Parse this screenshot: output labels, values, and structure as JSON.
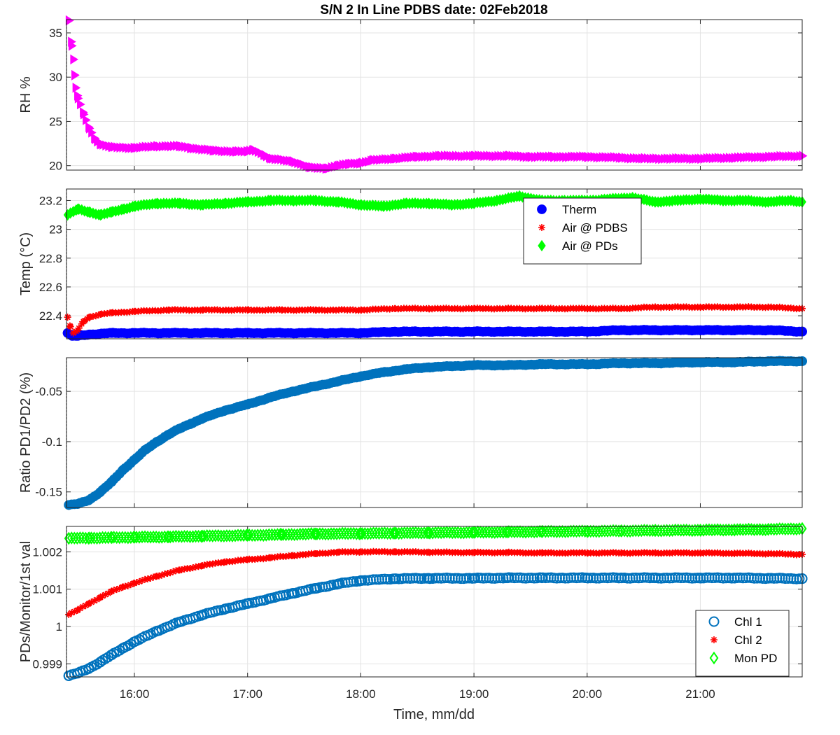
{
  "figure": {
    "title": "S/N 2 In Line PDBS date: 02Feb2018",
    "xlabel": "Time, mm/dd",
    "x_tick_labels": [
      "16:00",
      "17:00",
      "18:00",
      "19:00",
      "20:00",
      "21:00"
    ]
  },
  "chart_data": [
    {
      "type": "scatter",
      "ylabel": "RH %",
      "xlim": [
        15.4,
        21.9
      ],
      "ylim": [
        19.5,
        36.5
      ],
      "y_ticks": [
        20,
        25,
        30,
        35
      ],
      "grid": true,
      "series": [
        {
          "color": "#ff00ff",
          "marker": "triangle-right",
          "points": [
            [
              15.42,
              36.4
            ],
            [
              15.44,
              34
            ],
            [
              15.46,
              32
            ],
            [
              15.47,
              30.2
            ],
            [
              15.48,
              28.8
            ],
            [
              15.5,
              27.6
            ],
            [
              15.55,
              25.8
            ],
            [
              15.6,
              24.2
            ],
            [
              15.65,
              23
            ],
            [
              15.7,
              22.4
            ],
            [
              15.8,
              22.1
            ],
            [
              16,
              22
            ],
            [
              16.2,
              22.2
            ],
            [
              16.4,
              22.2
            ],
            [
              16.5,
              22
            ],
            [
              16.7,
              21.7
            ],
            [
              16.9,
              21.6
            ],
            [
              17,
              21.6
            ],
            [
              17.05,
              21.8
            ],
            [
              17.15,
              21.2
            ],
            [
              17.2,
              20.8
            ],
            [
              17.4,
              20.5
            ],
            [
              17.55,
              19.8
            ],
            [
              17.7,
              19.7
            ],
            [
              17.8,
              20
            ],
            [
              17.9,
              20.2
            ],
            [
              18,
              20.3
            ],
            [
              18.1,
              20.6
            ],
            [
              18.3,
              20.8
            ],
            [
              18.5,
              21
            ],
            [
              18.7,
              21.1
            ],
            [
              19,
              21.1
            ],
            [
              19.3,
              21.1
            ],
            [
              19.5,
              21
            ],
            [
              19.7,
              21
            ],
            [
              20,
              21
            ],
            [
              20.3,
              20.9
            ],
            [
              20.5,
              20.8
            ],
            [
              20.8,
              20.8
            ],
            [
              21,
              20.8
            ],
            [
              21.3,
              20.9
            ],
            [
              21.6,
              21
            ],
            [
              21.9,
              21.1
            ]
          ]
        }
      ]
    },
    {
      "type": "scatter",
      "ylabel": "Temp (°C)",
      "xlim": [
        15.4,
        21.9
      ],
      "ylim": [
        22.24,
        23.28
      ],
      "y_ticks": [
        22.4,
        22.6,
        22.8,
        23,
        23.2
      ],
      "y_tick_labels": [
        "22.4",
        "22.6",
        "22.8",
        "23",
        "23.2"
      ],
      "grid": true,
      "legend": {
        "placement": "top-right"
      },
      "series": [
        {
          "name": "Therm",
          "color": "#0000ff",
          "marker": "circle-filled",
          "points": [
            [
              15.41,
              22.28
            ],
            [
              15.45,
              22.26
            ],
            [
              15.5,
              22.26
            ],
            [
              15.6,
              22.27
            ],
            [
              15.8,
              22.28
            ],
            [
              16,
              22.28
            ],
            [
              16.3,
              22.28
            ],
            [
              16.6,
              22.28
            ],
            [
              17,
              22.28
            ],
            [
              17.3,
              22.28
            ],
            [
              17.6,
              22.28
            ],
            [
              18,
              22.28
            ],
            [
              18.3,
              22.29
            ],
            [
              18.6,
              22.29
            ],
            [
              19,
              22.29
            ],
            [
              19.3,
              22.29
            ],
            [
              19.6,
              22.29
            ],
            [
              20,
              22.29
            ],
            [
              20.3,
              22.3
            ],
            [
              20.6,
              22.3
            ],
            [
              21,
              22.3
            ],
            [
              21.3,
              22.3
            ],
            [
              21.6,
              22.3
            ],
            [
              21.9,
              22.29
            ]
          ]
        },
        {
          "name": "Air @ PDBS",
          "color": "#ff0000",
          "marker": "asterisk",
          "points": [
            [
              15.41,
              22.39
            ],
            [
              15.43,
              22.33
            ],
            [
              15.46,
              22.28
            ],
            [
              15.5,
              22.3
            ],
            [
              15.55,
              22.36
            ],
            [
              15.6,
              22.39
            ],
            [
              15.7,
              22.41
            ],
            [
              15.8,
              22.42
            ],
            [
              16,
              22.43
            ],
            [
              16.3,
              22.44
            ],
            [
              16.6,
              22.44
            ],
            [
              17,
              22.44
            ],
            [
              17.3,
              22.44
            ],
            [
              17.6,
              22.44
            ],
            [
              18,
              22.44
            ],
            [
              18.3,
              22.45
            ],
            [
              18.6,
              22.45
            ],
            [
              19,
              22.45
            ],
            [
              19.3,
              22.45
            ],
            [
              19.6,
              22.45
            ],
            [
              20,
              22.45
            ],
            [
              20.3,
              22.45
            ],
            [
              20.6,
              22.46
            ],
            [
              21,
              22.46
            ],
            [
              21.3,
              22.46
            ],
            [
              21.6,
              22.46
            ],
            [
              21.9,
              22.45
            ]
          ]
        },
        {
          "name": "Air @ PDs",
          "color": "#00ff00",
          "marker": "diamond-filled",
          "points": [
            [
              15.41,
              23.1
            ],
            [
              15.5,
              23.14
            ],
            [
              15.6,
              23.12
            ],
            [
              15.7,
              23.1
            ],
            [
              15.8,
              23.12
            ],
            [
              15.9,
              23.14
            ],
            [
              16,
              23.16
            ],
            [
              16.2,
              23.18
            ],
            [
              16.4,
              23.18
            ],
            [
              16.6,
              23.17
            ],
            [
              16.8,
              23.18
            ],
            [
              17,
              23.19
            ],
            [
              17.2,
              23.2
            ],
            [
              17.4,
              23.2
            ],
            [
              17.6,
              23.2
            ],
            [
              17.8,
              23.19
            ],
            [
              18,
              23.17
            ],
            [
              18.2,
              23.16
            ],
            [
              18.4,
              23.18
            ],
            [
              18.6,
              23.18
            ],
            [
              18.8,
              23.17
            ],
            [
              19,
              23.18
            ],
            [
              19.2,
              23.2
            ],
            [
              19.4,
              23.23
            ],
            [
              19.6,
              23.2
            ],
            [
              19.8,
              23.2
            ],
            [
              20,
              23.2
            ],
            [
              20.2,
              23.21
            ],
            [
              20.4,
              23.22
            ],
            [
              20.6,
              23.19
            ],
            [
              20.8,
              23.2
            ],
            [
              21,
              23.21
            ],
            [
              21.2,
              23.2
            ],
            [
              21.4,
              23.2
            ],
            [
              21.6,
              23.19
            ],
            [
              21.8,
              23.2
            ],
            [
              21.9,
              23.19
            ]
          ]
        }
      ]
    },
    {
      "type": "scatter",
      "ylabel": "Ratio PD1/PD2 (%)",
      "xlim": [
        15.4,
        21.9
      ],
      "ylim": [
        -0.1655,
        -0.0165
      ],
      "y_ticks": [
        -0.15,
        -0.1,
        -0.05
      ],
      "y_tick_labels": [
        "-0.15",
        "-0.1",
        "-0.05"
      ],
      "grid": true,
      "series": [
        {
          "color": "#0072bd",
          "marker": "circle-filled",
          "points": [
            [
              15.42,
              -0.163
            ],
            [
              15.5,
              -0.162
            ],
            [
              15.6,
              -0.158
            ],
            [
              15.7,
              -0.15
            ],
            [
              15.8,
              -0.14
            ],
            [
              15.9,
              -0.128
            ],
            [
              16,
              -0.118
            ],
            [
              16.1,
              -0.108
            ],
            [
              16.2,
              -0.1
            ],
            [
              16.3,
              -0.093
            ],
            [
              16.4,
              -0.087
            ],
            [
              16.5,
              -0.082
            ],
            [
              16.6,
              -0.077
            ],
            [
              16.8,
              -0.069
            ],
            [
              17,
              -0.063
            ],
            [
              17.2,
              -0.056
            ],
            [
              17.4,
              -0.05
            ],
            [
              17.6,
              -0.045
            ],
            [
              17.8,
              -0.04
            ],
            [
              18,
              -0.035
            ],
            [
              18.2,
              -0.031
            ],
            [
              18.4,
              -0.028
            ],
            [
              18.6,
              -0.026
            ],
            [
              18.8,
              -0.025
            ],
            [
              19,
              -0.024
            ],
            [
              19.3,
              -0.024
            ],
            [
              19.6,
              -0.023
            ],
            [
              20,
              -0.023
            ],
            [
              20.3,
              -0.022
            ],
            [
              20.6,
              -0.022
            ],
            [
              21,
              -0.021
            ],
            [
              21.3,
              -0.021
            ],
            [
              21.6,
              -0.02
            ],
            [
              21.9,
              -0.02
            ]
          ]
        }
      ]
    },
    {
      "type": "scatter",
      "ylabel": "PDs/Monitor/1st val",
      "xlim": [
        15.4,
        21.9
      ],
      "ylim": [
        0.99865,
        1.00268
      ],
      "y_ticks": [
        0.999,
        1,
        1.001,
        1.002
      ],
      "y_tick_labels": [
        "0.999",
        "1",
        "1.001",
        "1.002"
      ],
      "grid": true,
      "legend": {
        "placement": "bottom-right"
      },
      "series": [
        {
          "name": "Chl 1",
          "color": "#0072bd",
          "marker": "circle-open",
          "points": [
            [
              15.42,
              0.99868
            ],
            [
              15.5,
              0.99875
            ],
            [
              15.6,
              0.99888
            ],
            [
              15.7,
              0.99905
            ],
            [
              15.8,
              0.99924
            ],
            [
              15.9,
              0.99942
            ],
            [
              16,
              0.99959
            ],
            [
              16.2,
              0.99988
            ],
            [
              16.4,
              1.00012
            ],
            [
              16.6,
              1.00031
            ],
            [
              16.8,
              1.00047
            ],
            [
              17,
              1.00061
            ],
            [
              17.2,
              1.00075
            ],
            [
              17.4,
              1.00089
            ],
            [
              17.6,
              1.00102
            ],
            [
              17.8,
              1.00114
            ],
            [
              18,
              1.00123
            ],
            [
              18.3,
              1.00128
            ],
            [
              18.6,
              1.00129
            ],
            [
              19,
              1.00129
            ],
            [
              19.3,
              1.0013
            ],
            [
              19.6,
              1.0013
            ],
            [
              20,
              1.0013
            ],
            [
              20.3,
              1.0013
            ],
            [
              20.6,
              1.0013
            ],
            [
              21,
              1.0013
            ],
            [
              21.3,
              1.0013
            ],
            [
              21.6,
              1.00129
            ],
            [
              21.9,
              1.00128
            ]
          ]
        },
        {
          "name": "Chl 2",
          "color": "#ff0000",
          "marker": "asterisk",
          "points": [
            [
              15.42,
              1.00032
            ],
            [
              15.5,
              1.00044
            ],
            [
              15.6,
              1.00062
            ],
            [
              15.7,
              1.00078
            ],
            [
              15.8,
              1.00094
            ],
            [
              15.9,
              1.00106
            ],
            [
              16,
              1.00116
            ],
            [
              16.2,
              1.00135
            ],
            [
              16.4,
              1.00151
            ],
            [
              16.6,
              1.00163
            ],
            [
              16.8,
              1.00173
            ],
            [
              17,
              1.00179
            ],
            [
              17.2,
              1.00184
            ],
            [
              17.4,
              1.0019
            ],
            [
              17.6,
              1.00195
            ],
            [
              17.8,
              1.00199
            ],
            [
              18,
              1.002
            ],
            [
              18.3,
              1.002
            ],
            [
              18.6,
              1.00199
            ],
            [
              19,
              1.00198
            ],
            [
              19.3,
              1.00198
            ],
            [
              19.6,
              1.00197
            ],
            [
              20,
              1.00197
            ],
            [
              20.3,
              1.00197
            ],
            [
              20.6,
              1.00197
            ],
            [
              21,
              1.00197
            ],
            [
              21.3,
              1.00196
            ],
            [
              21.6,
              1.00195
            ],
            [
              21.9,
              1.00193
            ]
          ]
        },
        {
          "name": "Mon PD",
          "color": "#00ff00",
          "marker": "diamond-open",
          "points": [
            [
              15.42,
              1.00236
            ],
            [
              15.6,
              1.00237
            ],
            [
              15.8,
              1.00238
            ],
            [
              16,
              1.00239
            ],
            [
              16.3,
              1.0024
            ],
            [
              16.6,
              1.00242
            ],
            [
              17,
              1.00244
            ],
            [
              17.3,
              1.00246
            ],
            [
              17.6,
              1.00248
            ],
            [
              18,
              1.00249
            ],
            [
              18.3,
              1.0025
            ],
            [
              18.6,
              1.00251
            ],
            [
              19,
              1.00252
            ],
            [
              19.3,
              1.00253
            ],
            [
              19.6,
              1.00254
            ],
            [
              20,
              1.00255
            ],
            [
              20.3,
              1.00256
            ],
            [
              20.6,
              1.00257
            ],
            [
              21,
              1.00258
            ],
            [
              21.3,
              1.00259
            ],
            [
              21.6,
              1.0026
            ],
            [
              21.9,
              1.00262
            ]
          ]
        }
      ]
    }
  ]
}
